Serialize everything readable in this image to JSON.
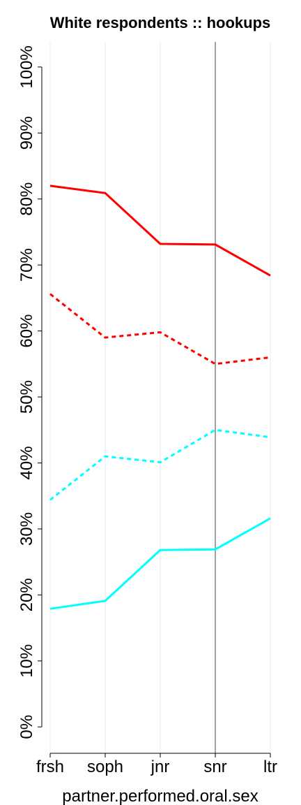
{
  "chart_data": {
    "type": "line",
    "title": "White respondents :: hookups",
    "x_label": "partner.performed.oral.sex",
    "categories": [
      "frsh",
      "soph",
      "jnr",
      "snr",
      "ltr"
    ],
    "series": [
      {
        "color": "#ff0000",
        "dashed": false,
        "values": [
          82.0,
          80.9,
          73.2,
          73.1,
          68.4
        ]
      },
      {
        "color": "#ff0000",
        "dashed": true,
        "values": [
          65.6,
          59.0,
          59.8,
          55.0,
          56.0
        ]
      },
      {
        "color": "#00ffff",
        "dashed": true,
        "values": [
          34.4,
          41.0,
          40.1,
          45.0,
          43.9
        ]
      },
      {
        "color": "#00ffff",
        "dashed": false,
        "values": [
          17.9,
          19.1,
          26.8,
          26.9,
          31.6
        ]
      }
    ],
    "ylim": [
      -4,
      103.8
    ],
    "yticks": [
      {
        "value": 0,
        "label": "0%"
      },
      {
        "value": 10,
        "label": "10%"
      },
      {
        "value": 20,
        "label": "20%"
      },
      {
        "value": 30,
        "label": "30%"
      },
      {
        "value": 40,
        "label": "40%"
      },
      {
        "value": 50,
        "label": "50%"
      },
      {
        "value": 60,
        "label": "60%"
      },
      {
        "value": 70,
        "label": "70%"
      },
      {
        "value": 80,
        "label": "80%"
      },
      {
        "value": 90,
        "label": "90%"
      },
      {
        "value": 100,
        "label": "100%"
      }
    ],
    "grid": true,
    "vline": "snr"
  }
}
